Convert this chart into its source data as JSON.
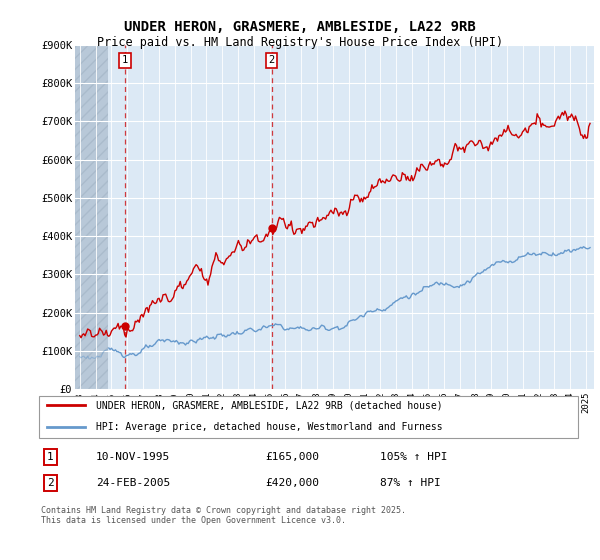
{
  "title": "UNDER HERON, GRASMERE, AMBLESIDE, LA22 9RB",
  "subtitle": "Price paid vs. HM Land Registry's House Price Index (HPI)",
  "ylim": [
    0,
    900000
  ],
  "xlim_start": 1992.7,
  "xlim_end": 2025.5,
  "plot_bg_color": "#dce9f5",
  "hatch_bg_color": "#c8d4e0",
  "grid_color": "#ffffff",
  "red_color": "#cc0000",
  "blue_color": "#6699cc",
  "sale1_x": 1995.87,
  "sale1_y": 165000,
  "sale1_label": "1",
  "sale1_date": "10-NOV-1995",
  "sale1_price": "£165,000",
  "sale1_hpi": "105% ↑ HPI",
  "sale2_x": 2005.13,
  "sale2_y": 420000,
  "sale2_label": "2",
  "sale2_date": "24-FEB-2005",
  "sale2_price": "£420,000",
  "sale2_hpi": "87% ↑ HPI",
  "legend_line1": "UNDER HERON, GRASMERE, AMBLESIDE, LA22 9RB (detached house)",
  "legend_line2": "HPI: Average price, detached house, Westmorland and Furness",
  "footer": "Contains HM Land Registry data © Crown copyright and database right 2025.\nThis data is licensed under the Open Government Licence v3.0.",
  "yticks": [
    0,
    100000,
    200000,
    300000,
    400000,
    500000,
    600000,
    700000,
    800000,
    900000
  ],
  "ytick_labels": [
    "£0",
    "£100K",
    "£200K",
    "£300K",
    "£400K",
    "£500K",
    "£600K",
    "£700K",
    "£800K",
    "£900K"
  ],
  "xtick_years": [
    1993,
    1994,
    1995,
    1996,
    1997,
    1998,
    1999,
    2000,
    2001,
    2002,
    2003,
    2004,
    2005,
    2006,
    2007,
    2008,
    2009,
    2010,
    2011,
    2012,
    2013,
    2014,
    2015,
    2016,
    2017,
    2018,
    2019,
    2020,
    2021,
    2022,
    2023,
    2024,
    2025
  ],
  "hatch_end_x": 1994.8
}
